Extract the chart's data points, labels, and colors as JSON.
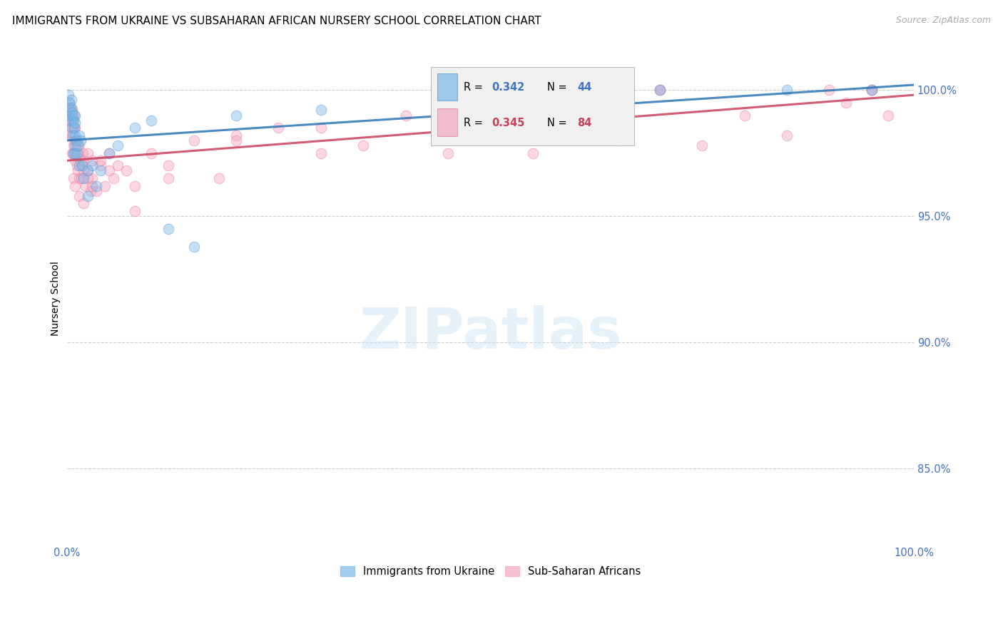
{
  "title": "IMMIGRANTS FROM UKRAINE VS SUBSAHARAN AFRICAN NURSERY SCHOOL CORRELATION CHART",
  "source": "Source: ZipAtlas.com",
  "ylabel": "Nursery School",
  "ytick_vals": [
    85.0,
    90.0,
    95.0,
    100.0
  ],
  "ytick_labels": [
    "85.0%",
    "90.0%",
    "95.0%",
    "100.0%"
  ],
  "xlim": [
    0.0,
    100.0
  ],
  "ylim": [
    82.0,
    101.5
  ],
  "legend_ukraine_R": "0.342",
  "legend_ukraine_N": "44",
  "legend_subsaharan_R": "0.345",
  "legend_subsaharan_N": "84",
  "legend_ukraine_label": "Immigrants from Ukraine",
  "legend_subsaharan_label": "Sub-Saharan Africans",
  "ukraine_color": "#7db8e8",
  "ukraine_edge": "#5b9bd5",
  "subsaharan_color": "#f4a8c0",
  "subsaharan_edge": "#e87ea0",
  "ukraine_line_color": "#2e75b6",
  "subsaharan_line_color": "#c9405a",
  "axis_label_color": "#4472c4",
  "grid_color": "#cccccc",
  "background_color": "#ffffff",
  "watermark_text": "ZIPatlas",
  "title_fontsize": 11,
  "source_fontsize": 9,
  "scatter_size": 110,
  "scatter_alpha": 0.45,
  "ukraine_x": [
    0.2,
    0.3,
    0.3,
    0.4,
    0.5,
    0.5,
    0.5,
    0.6,
    0.6,
    0.7,
    0.7,
    0.8,
    0.8,
    0.9,
    1.0,
    1.0,
    1.0,
    1.0,
    1.0,
    1.1,
    1.2,
    1.3,
    1.5,
    1.5,
    1.6,
    1.8,
    2.0,
    2.5,
    2.5,
    3.0,
    3.5,
    4.0,
    5.0,
    6.0,
    8.0,
    10.0,
    12.0,
    15.0,
    20.0,
    30.0,
    50.0,
    70.0,
    85.0,
    95.0
  ],
  "ukraine_y": [
    99.8,
    99.5,
    99.0,
    99.2,
    99.6,
    99.3,
    98.8,
    99.1,
    98.5,
    99.0,
    98.2,
    98.8,
    97.5,
    98.5,
    99.0,
    98.7,
    98.2,
    97.8,
    97.5,
    98.0,
    97.5,
    97.8,
    98.2,
    97.0,
    98.0,
    97.0,
    96.5,
    96.8,
    95.8,
    97.0,
    96.2,
    96.8,
    97.5,
    97.8,
    98.5,
    98.8,
    94.5,
    93.8,
    99.0,
    99.2,
    100.0,
    100.0,
    100.0,
    100.0
  ],
  "subsaharan_x": [
    0.1,
    0.2,
    0.3,
    0.3,
    0.4,
    0.5,
    0.5,
    0.6,
    0.6,
    0.7,
    0.7,
    0.8,
    0.8,
    0.9,
    0.9,
    1.0,
    1.0,
    1.0,
    1.1,
    1.2,
    1.2,
    1.3,
    1.4,
    1.5,
    1.5,
    1.6,
    1.7,
    1.8,
    1.9,
    2.0,
    2.0,
    2.2,
    2.5,
    2.5,
    2.8,
    3.0,
    3.0,
    3.5,
    4.0,
    4.5,
    5.0,
    5.5,
    6.0,
    7.0,
    8.0,
    10.0,
    12.0,
    15.0,
    18.0,
    20.0,
    25.0,
    30.0,
    35.0,
    40.0,
    45.0,
    50.0,
    55.0,
    60.0,
    65.0,
    70.0,
    75.0,
    80.0,
    85.0,
    90.0,
    92.0,
    95.0,
    97.0,
    0.4,
    0.6,
    0.8,
    1.0,
    1.5,
    2.0,
    2.5,
    3.0,
    4.0,
    5.0,
    8.0,
    12.0,
    20.0,
    30.0,
    50.0,
    70.0,
    95.0
  ],
  "subsaharan_y": [
    99.2,
    99.0,
    99.5,
    98.8,
    99.3,
    98.5,
    99.0,
    98.2,
    99.2,
    98.8,
    97.5,
    98.5,
    97.8,
    99.0,
    98.0,
    98.5,
    97.5,
    97.2,
    97.8,
    97.0,
    98.0,
    96.8,
    97.5,
    96.5,
    97.8,
    97.2,
    96.5,
    97.0,
    97.5,
    96.8,
    97.2,
    96.2,
    96.8,
    97.5,
    96.0,
    97.2,
    96.5,
    96.0,
    97.0,
    96.2,
    97.5,
    96.5,
    97.0,
    96.8,
    96.2,
    97.5,
    96.5,
    98.0,
    96.5,
    98.2,
    98.5,
    98.5,
    97.8,
    99.0,
    97.5,
    99.2,
    97.5,
    99.5,
    98.0,
    100.0,
    97.8,
    99.0,
    98.2,
    100.0,
    99.5,
    100.0,
    99.0,
    98.2,
    97.5,
    96.5,
    96.2,
    95.8,
    95.5,
    96.5,
    96.2,
    97.2,
    96.8,
    95.2,
    97.0,
    98.0,
    97.5,
    98.8,
    100.0,
    100.0
  ],
  "ukraine_trendline_start_y": 98.0,
  "ukraine_trendline_end_y": 100.2,
  "subsaharan_trendline_start_y": 97.2,
  "subsaharan_trendline_end_y": 99.8
}
